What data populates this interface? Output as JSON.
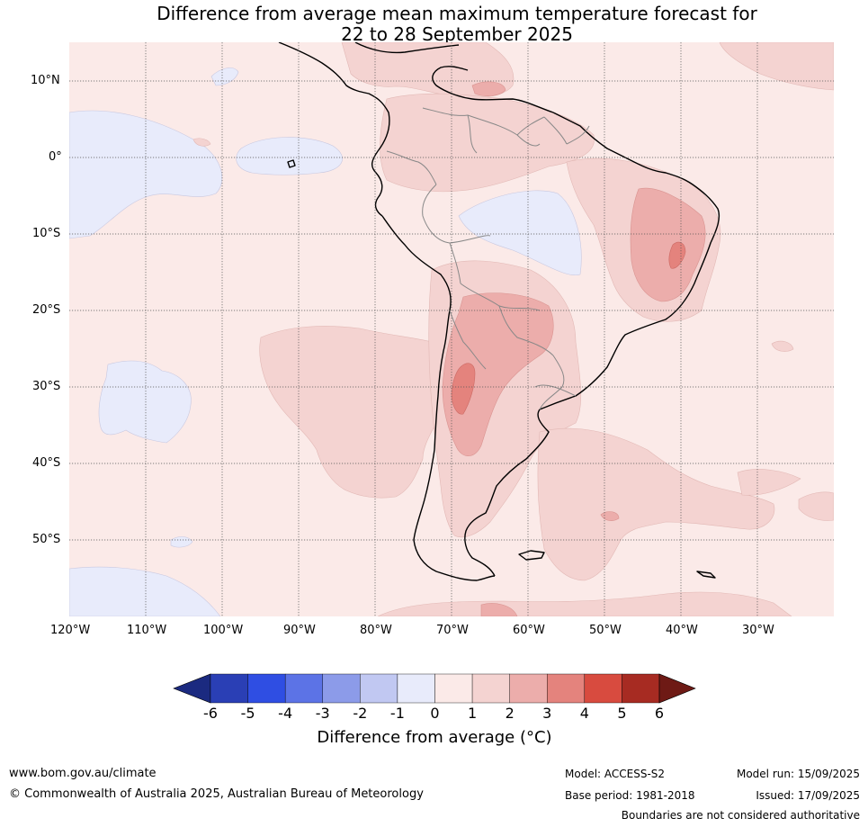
{
  "title_line1": "Difference from average mean maximum temperature forecast for",
  "title_line2": "22 to 28 September 2025",
  "lat_labels": [
    "10°N",
    "0°",
    "10°S",
    "20°S",
    "30°S",
    "40°S",
    "50°S"
  ],
  "lon_labels": [
    "120°W",
    "110°W",
    "100°W",
    "90°W",
    "80°W",
    "70°W",
    "60°W",
    "50°W",
    "40°W",
    "30°W"
  ],
  "colorbar": {
    "ticks": [
      "-6",
      "-5",
      "-4",
      "-3",
      "-2",
      "-1",
      "0",
      "1",
      "2",
      "3",
      "4",
      "5",
      "6"
    ],
    "colors": [
      "#1b2a80",
      "#2a3fb5",
      "#2f4ee3",
      "#5c73e6",
      "#8c9be9",
      "#c1c8f2",
      "#e8ebfb",
      "#fbeae8",
      "#f4d3d1",
      "#ecadab",
      "#e4837d",
      "#d84b3f",
      "#a72b22",
      "#6e1a15"
    ],
    "title": "Difference from average ($^\\circ$C)",
    "title_display": "Difference from average (°C)"
  },
  "footer": {
    "website": "www.bom.gov.au/climate",
    "copyright": "© Commonwealth of Australia 2025, Australian Bureau of Meteorology",
    "model": "Model: ACCESS-S2",
    "base_period": "Base period: 1981-2018",
    "model_run": "Model run: 15/09/2025",
    "issued": "Issued: 17/09/2025",
    "disclaimer": "Boundaries are not considered authoritative"
  },
  "map_colors": {
    "background": "#fbeae8",
    "cool": "#e8ebfb",
    "warm1": "#f4d3d1",
    "warm2": "#ecadab",
    "warm3": "#e4837d",
    "coast": "#000000",
    "borders": "#808080",
    "grid": "#555555"
  }
}
